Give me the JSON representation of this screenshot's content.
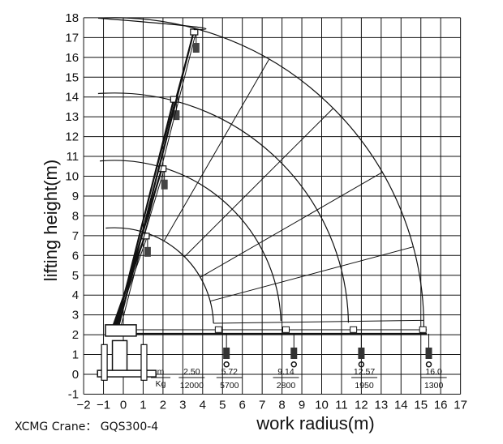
{
  "diagram": {
    "x_axis_title": "work radius(m)",
    "y_axis_title": "lifting height(m)",
    "x_ticks": [
      "−2",
      "−1",
      "0",
      "1",
      "2",
      "3",
      "4",
      "5",
      "6",
      "7",
      "8",
      "9",
      "10",
      "11",
      "12",
      "13",
      "14",
      "15",
      "16",
      "17"
    ],
    "y_ticks": [
      "-1",
      "0",
      "1",
      "2",
      "3",
      "4",
      "5",
      "6",
      "7",
      "8",
      "9",
      "10",
      "11",
      "12",
      "13",
      "14",
      "15",
      "16",
      "17",
      "18"
    ],
    "unit_labels": {
      "radius": "m",
      "load": "Kg"
    },
    "capacity_table": [
      {
        "radius": "2.50",
        "load": "12000"
      },
      {
        "radius": "5.72",
        "load": "5700"
      },
      {
        "radius": "9.14",
        "load": "2800"
      },
      {
        "radius": "12.57",
        "load": "1950"
      },
      {
        "radius": "16.0",
        "load": "1300"
      }
    ],
    "boom_sections": 4,
    "colors": {
      "line": "#111111",
      "grid": "#111111",
      "background": "#ffffff"
    }
  },
  "caption": "XCMG Crane： GQS300-4"
}
